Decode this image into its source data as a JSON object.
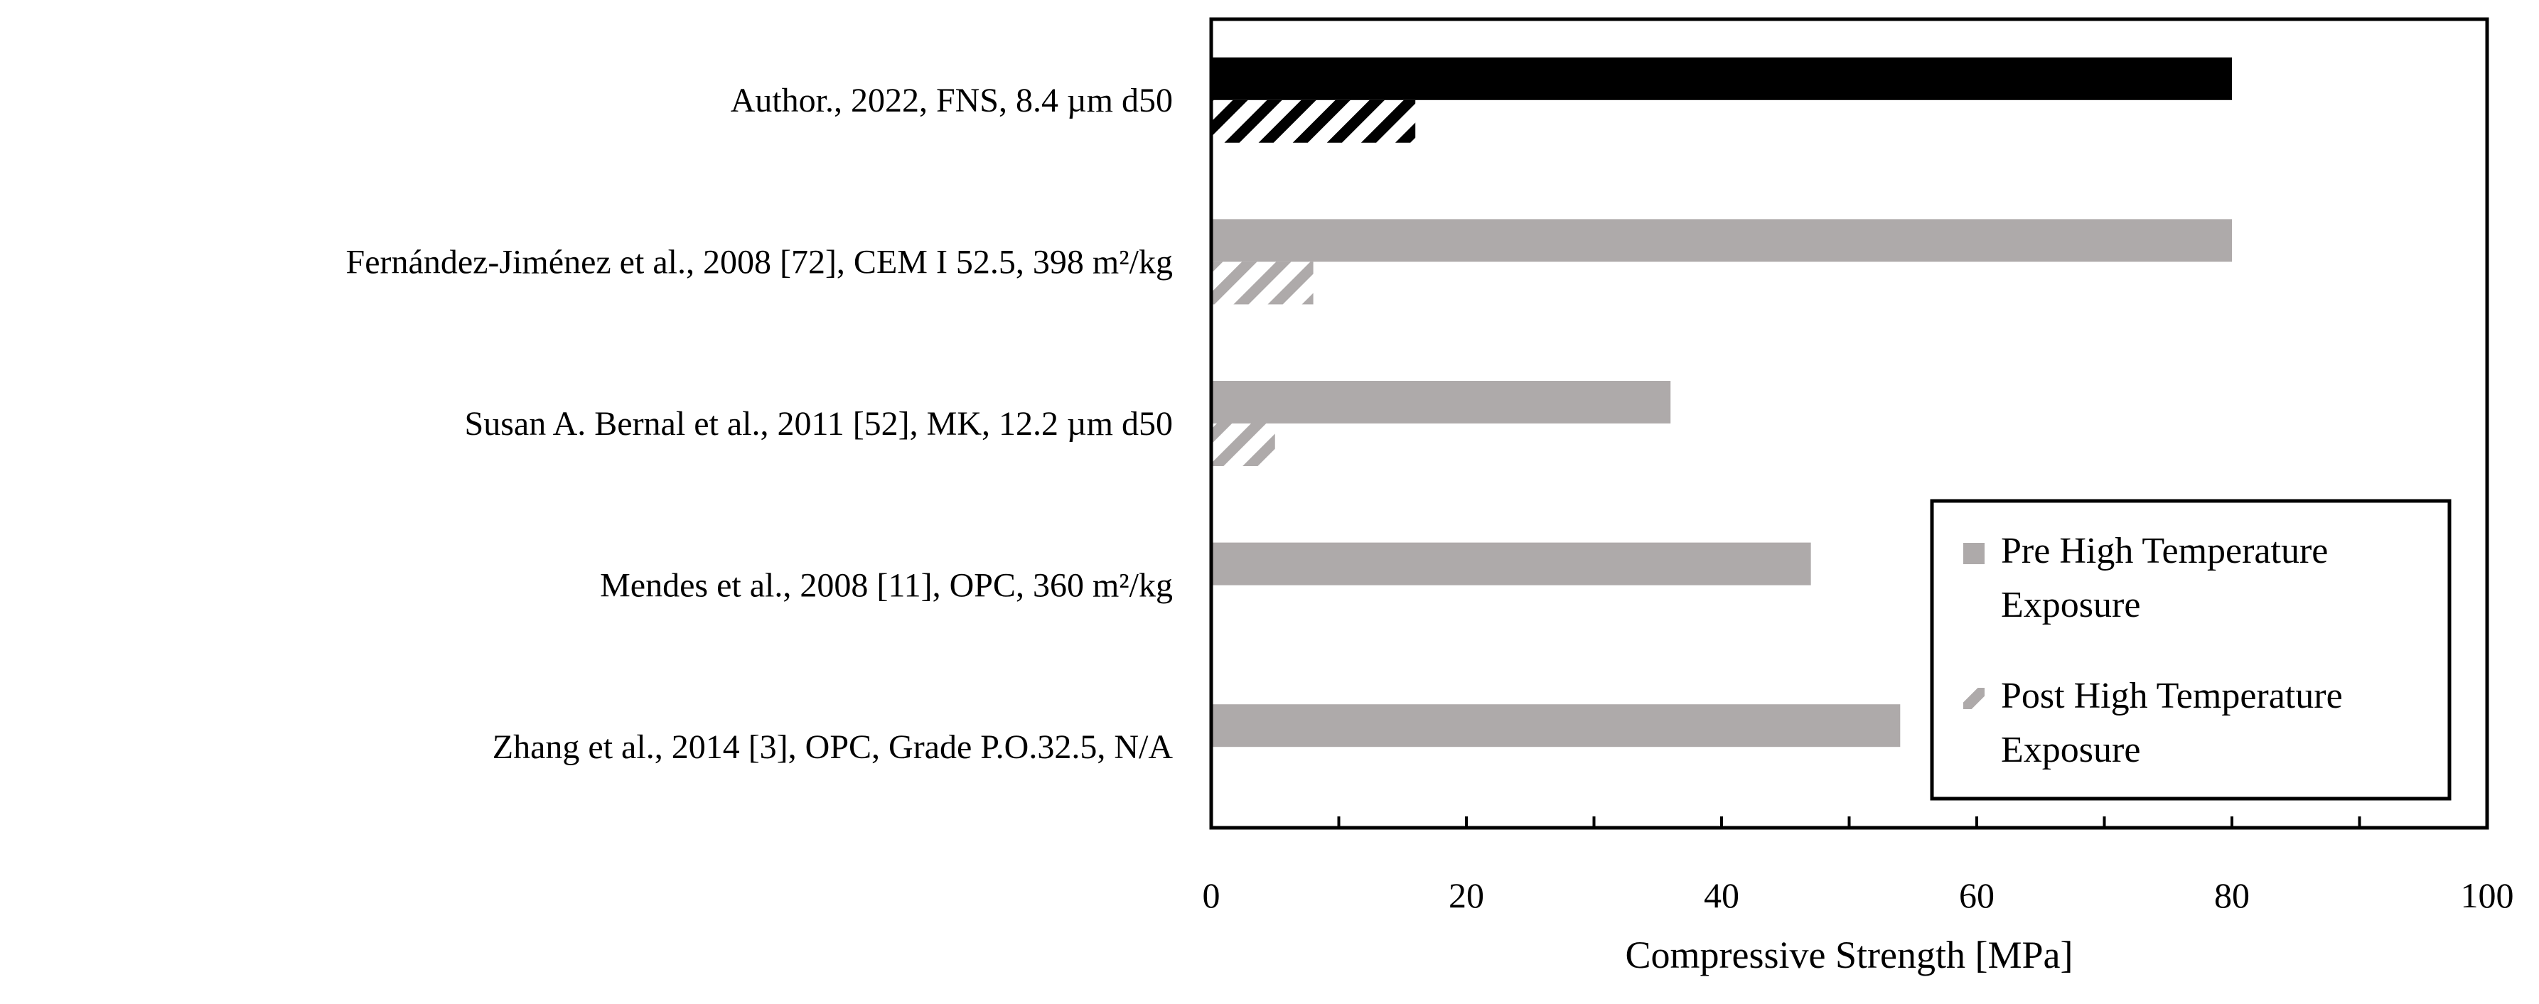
{
  "chart_data": {
    "type": "bar",
    "orientation": "horizontal",
    "xlabel": "Compressive Strength [MPa]",
    "ylabel": "",
    "xlim": [
      0,
      100
    ],
    "xticks": [
      0,
      20,
      40,
      60,
      80,
      100
    ],
    "grid": false,
    "legend_position": "bottom-right",
    "categories": [
      "Author., 2022, FNS, 8.4 µm d50",
      "Fernández-Jiménez et al., 2008 [72], CEM I 52.5, 398 m²/kg",
      "Susan A. Bernal et al., 2011 [52], MK, 12.2 µm d50",
      "Mendes et al., 2008 [11], OPC, 360 m²/kg",
      "Zhang et al., 2014 [3], OPC, Grade P.O.32.5, N/A"
    ],
    "series": [
      {
        "name": "Pre High Temperature Exposure",
        "legend_lines": [
          "Pre High Temperature",
          "Exposure"
        ],
        "values": [
          80,
          80,
          36,
          47,
          54
        ],
        "pattern": "solid"
      },
      {
        "name": "Post High Temperature Exposure",
        "legend_lines": [
          "Post High Temperature",
          "Exposure"
        ],
        "values": [
          16,
          8,
          5,
          0,
          0
        ],
        "pattern": "diagonal-hatch"
      }
    ],
    "bar_colors": [
      "#000000",
      "#aeaaaa",
      "#aeaaaa",
      "#aeaaaa",
      "#aeaaaa"
    ]
  }
}
